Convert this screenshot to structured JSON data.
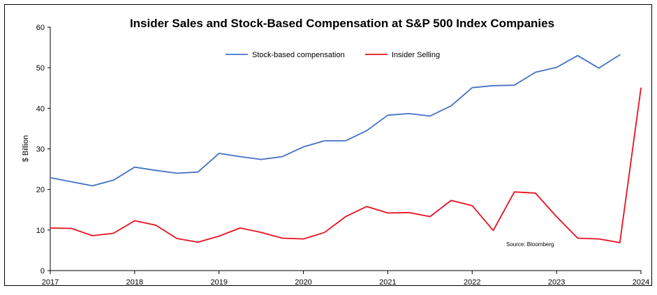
{
  "chart_data": {
    "type": "line",
    "title": "Insider Sales and Stock-Based Compensation at S&P 500 Index Companies",
    "ylabel": "$ Billion",
    "xlabel": "",
    "ylim": [
      0,
      60
    ],
    "yticks": [
      "0",
      "10",
      "20",
      "30",
      "40",
      "50",
      "60"
    ],
    "xlim": [
      2017,
      2024
    ],
    "xticks": [
      "2017",
      "2018",
      "2019",
      "2020",
      "2021",
      "2022",
      "2023",
      "2024"
    ],
    "grid": false,
    "legend": "top-center",
    "source_note": "Source: Bloomberg",
    "x": [
      2017.0,
      2017.25,
      2017.5,
      2017.75,
      2018.0,
      2018.25,
      2018.5,
      2018.75,
      2019.0,
      2019.25,
      2019.5,
      2019.75,
      2020.0,
      2020.25,
      2020.5,
      2020.75,
      2021.0,
      2021.25,
      2021.5,
      2021.75,
      2022.0,
      2022.25,
      2022.5,
      2022.75,
      2023.0,
      2023.25,
      2023.5,
      2023.75
    ],
    "series": [
      {
        "name": "Stock-based compensation",
        "color": "#4472c4",
        "values": [
          22.9,
          21.9,
          20.9,
          22.3,
          25.5,
          24.7,
          24.0,
          24.3,
          28.9,
          28.1,
          27.4,
          28.1,
          30.5,
          32.0,
          32.0,
          34.5,
          38.3,
          38.7,
          38.1,
          40.6,
          45.1,
          45.6,
          45.7,
          48.9,
          50.1,
          53.0,
          49.9,
          53.2
        ]
      },
      {
        "name": "Insider Selling",
        "color": "#e8101e",
        "x": [
          2017.0,
          2017.25,
          2017.5,
          2017.75,
          2018.0,
          2018.25,
          2018.5,
          2018.75,
          2019.0,
          2019.25,
          2019.5,
          2019.75,
          2020.0,
          2020.25,
          2020.5,
          2020.75,
          2021.0,
          2021.25,
          2021.5,
          2021.75,
          2022.0,
          2022.25,
          2022.5,
          2022.75,
          2023.0,
          2023.25,
          2023.5,
          2023.75,
          2024.0
        ],
        "values": [
          10.5,
          10.4,
          8.6,
          9.2,
          12.3,
          11.2,
          7.9,
          7.0,
          8.5,
          10.5,
          9.4,
          8.0,
          7.8,
          9.4,
          13.3,
          15.8,
          14.2,
          14.3,
          13.3,
          17.3,
          16.0,
          9.9,
          19.4,
          19.1,
          13.3,
          8.0,
          7.8,
          6.9,
          45.0
        ]
      }
    ]
  }
}
